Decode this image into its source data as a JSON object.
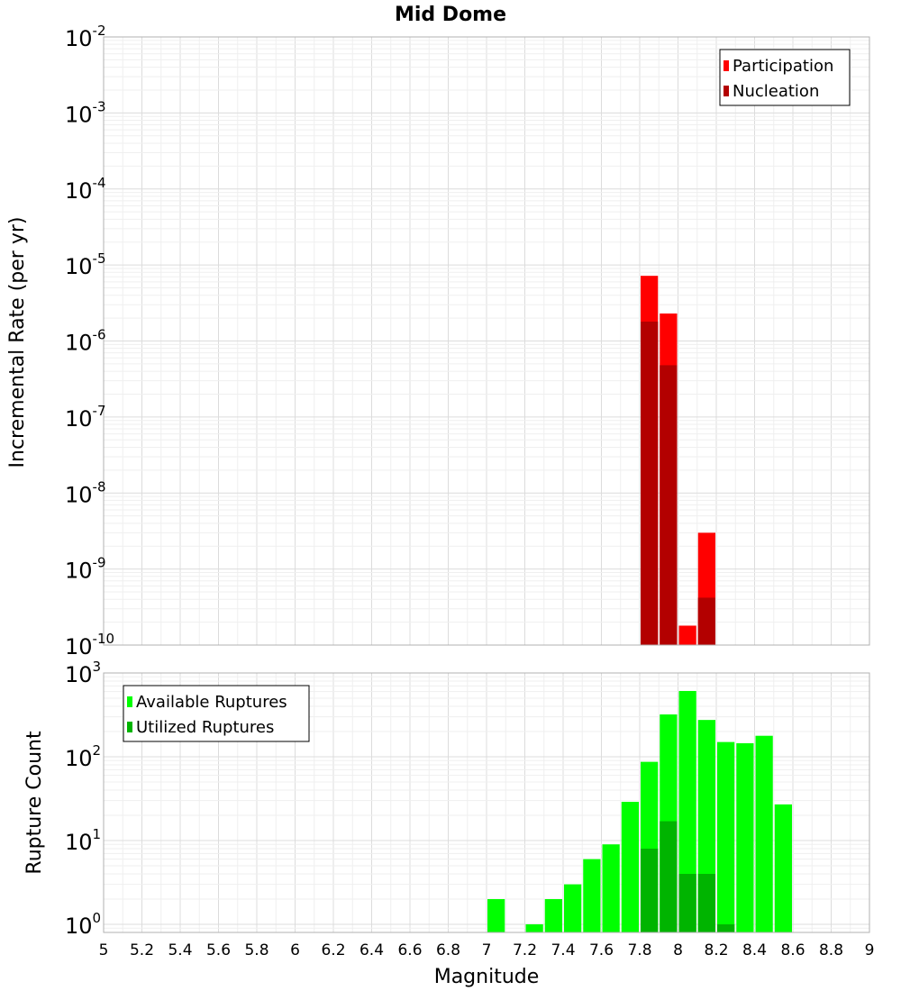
{
  "title": "Mid Dome",
  "colors": {
    "participation": "#ff0000",
    "nucleation": "#b30000",
    "available": "#00ff00",
    "utilized": "#00b400",
    "grid_major": "#dcdcdc",
    "grid_minor": "#efefef",
    "frame": "#b0b0b0"
  },
  "x_axis": {
    "label": "Magnitude",
    "range": [
      5,
      9
    ],
    "ticks": [
      "5",
      "5.2",
      "5.4",
      "5.6",
      "5.8",
      "6",
      "6.2",
      "6.4",
      "6.6",
      "6.8",
      "7",
      "7.2",
      "7.4",
      "7.6",
      "7.8",
      "8",
      "8.2",
      "8.4",
      "8.6",
      "8.8",
      "9"
    ]
  },
  "chart_data": [
    {
      "type": "bar",
      "title": "Mid Dome",
      "xlabel": "Magnitude",
      "ylabel": "Incremental Rate (per yr)",
      "yscale": "log",
      "ylim": [
        1e-10,
        0.01
      ],
      "xlim": [
        5,
        9
      ],
      "bin_width": 0.1,
      "y_ticks": [
        {
          "base": "10",
          "exp": "-2",
          "value": 0.01
        },
        {
          "base": "10",
          "exp": "-3",
          "value": 0.001
        },
        {
          "base": "10",
          "exp": "-4",
          "value": 0.0001
        },
        {
          "base": "10",
          "exp": "-5",
          "value": 1e-05
        },
        {
          "base": "10",
          "exp": "-6",
          "value": 1e-06
        },
        {
          "base": "10",
          "exp": "-7",
          "value": 1e-07
        },
        {
          "base": "10",
          "exp": "-8",
          "value": 1e-08
        },
        {
          "base": "10",
          "exp": "-9",
          "value": 1e-09
        },
        {
          "base": "10",
          "exp": "-10",
          "value": 1e-10
        }
      ],
      "legend": {
        "position": "top-right",
        "entries": [
          "Participation",
          "Nucleation"
        ]
      },
      "series": [
        {
          "name": "Participation",
          "color": "#ff0000",
          "points": [
            {
              "x": 7.85,
              "y": 7.2e-06
            },
            {
              "x": 7.95,
              "y": 2.3e-06
            },
            {
              "x": 8.05,
              "y": 1.8e-10
            },
            {
              "x": 8.15,
              "y": 3e-09
            }
          ]
        },
        {
          "name": "Nucleation",
          "color": "#b30000",
          "points": [
            {
              "x": 7.85,
              "y": 1.8e-06
            },
            {
              "x": 7.95,
              "y": 4.8e-07
            },
            {
              "x": 8.15,
              "y": 4.2e-10
            }
          ]
        }
      ]
    },
    {
      "type": "bar",
      "title": "",
      "xlabel": "Magnitude",
      "ylabel": "Rupture Count",
      "yscale": "log",
      "ylim": [
        0.8,
        1000
      ],
      "xlim": [
        5,
        9
      ],
      "bin_width": 0.1,
      "y_ticks": [
        {
          "base": "10",
          "exp": "3",
          "value": 1000
        },
        {
          "base": "10",
          "exp": "2",
          "value": 100
        },
        {
          "base": "10",
          "exp": "1",
          "value": 10
        },
        {
          "base": "10",
          "exp": "0",
          "value": 1
        }
      ],
      "legend": {
        "position": "top-left",
        "entries": [
          "Available Ruptures",
          "Utilized Ruptures"
        ]
      },
      "series": [
        {
          "name": "Available Ruptures",
          "color": "#00ff00",
          "points": [
            {
              "x": 7.05,
              "y": 2
            },
            {
              "x": 7.25,
              "y": 1
            },
            {
              "x": 7.35,
              "y": 2
            },
            {
              "x": 7.45,
              "y": 3
            },
            {
              "x": 7.55,
              "y": 6
            },
            {
              "x": 7.65,
              "y": 9
            },
            {
              "x": 7.75,
              "y": 29
            },
            {
              "x": 7.85,
              "y": 87
            },
            {
              "x": 7.95,
              "y": 320
            },
            {
              "x": 8.05,
              "y": 610
            },
            {
              "x": 8.15,
              "y": 275
            },
            {
              "x": 8.25,
              "y": 150
            },
            {
              "x": 8.35,
              "y": 145
            },
            {
              "x": 8.45,
              "y": 178
            },
            {
              "x": 8.55,
              "y": 27
            }
          ]
        },
        {
          "name": "Utilized Ruptures",
          "color": "#00b400",
          "points": [
            {
              "x": 7.85,
              "y": 8
            },
            {
              "x": 7.95,
              "y": 17
            },
            {
              "x": 8.05,
              "y": 4
            },
            {
              "x": 8.15,
              "y": 4
            },
            {
              "x": 8.25,
              "y": 1
            }
          ]
        }
      ]
    }
  ]
}
